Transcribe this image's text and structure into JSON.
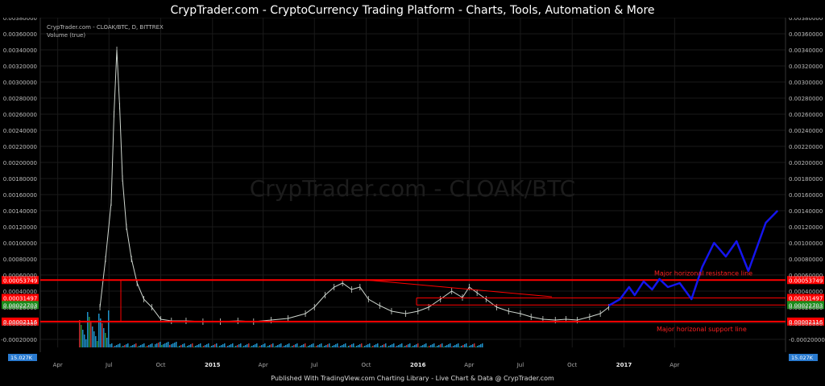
{
  "header": {
    "title": "CrypTrader.com  -  CryptoCurrency Trading Platform  -  Charts, Tools, Automation & More"
  },
  "legend": {
    "symbol": "CrypTrader.com - CLOAK/BTC, D, BITTREX",
    "volume": "Volume (true)"
  },
  "watermark": "CrypTrader.com - CLOAK/BTC",
  "footer": {
    "text": "Published With TradingView.com Charting Library - Live Chart & Data @ CrypTrader.com"
  },
  "colors": {
    "background": "#000000",
    "grid": "#1a1a1a",
    "price": "#cfd6cf",
    "support_resistance": "#ff0000",
    "projection": "#1515ee",
    "volume": "#1e90c8"
  },
  "chart_data": {
    "type": "line",
    "title": "CrypTrader.com - CLOAK/BTC, D, BITTREX",
    "yscale": "linear",
    "ylim": [
      -0.0003,
      0.0038
    ],
    "y_ticks": [
      "0.00380000",
      "0.00360000",
      "0.00340000",
      "0.00320000",
      "0.00300000",
      "0.00280000",
      "0.00260000",
      "0.00240000",
      "0.00220000",
      "0.00200000",
      "0.00180000",
      "0.00160000",
      "0.00140000",
      "0.00120000",
      "0.00100000",
      "0.00080000",
      "0.00060000",
      "0.00040000",
      "0.00020000",
      "0.00000000",
      "-0.00020000"
    ],
    "x_ticks": [
      "Apr",
      "Jul",
      "Oct",
      "2015",
      "Apr",
      "Jul",
      "Oct",
      "2016",
      "Apr",
      "Jul",
      "Oct",
      "2017",
      "Apr"
    ],
    "x_tick_dates": [
      "2014-04",
      "2014-07",
      "2014-10",
      "2015-01",
      "2015-04",
      "2015-07",
      "2015-10",
      "2016-01",
      "2016-04",
      "2016-07",
      "2016-10",
      "2017-01",
      "2017-04"
    ],
    "price_series": {
      "name": "CLOAK/BTC",
      "x": [
        "2014-06-15",
        "2014-06-25",
        "2014-07-05",
        "2014-07-10",
        "2014-07-15",
        "2014-07-20",
        "2014-07-25",
        "2014-08-01",
        "2014-08-10",
        "2014-08-20",
        "2014-09-01",
        "2014-09-15",
        "2014-10-01",
        "2014-10-20",
        "2014-11-15",
        "2014-12-15",
        "2015-01-15",
        "2015-02-15",
        "2015-03-15",
        "2015-04-15",
        "2015-05-15",
        "2015-06-15",
        "2015-07-01",
        "2015-07-20",
        "2015-08-05",
        "2015-08-20",
        "2015-09-05",
        "2015-09-20",
        "2015-10-05",
        "2015-10-25",
        "2015-11-15",
        "2015-12-10",
        "2016-01-01",
        "2016-01-20",
        "2016-02-10",
        "2016-03-01",
        "2016-03-20",
        "2016-04-01",
        "2016-04-15",
        "2016-05-01",
        "2016-05-20",
        "2016-06-10",
        "2016-07-01",
        "2016-07-20",
        "2016-08-10",
        "2016-09-01",
        "2016-09-20",
        "2016-10-10",
        "2016-11-01",
        "2016-11-20",
        "2016-12-05"
      ],
      "y": [
        0.0002,
        0.0008,
        0.0015,
        0.0026,
        0.0034,
        0.0027,
        0.0018,
        0.0012,
        0.0008,
        0.0005,
        0.0003,
        0.0002,
        5e-05,
        3e-05,
        3e-05,
        2e-05,
        2e-05,
        3e-05,
        2e-05,
        4e-05,
        6e-05,
        0.00012,
        0.0002,
        0.00035,
        0.00045,
        0.0005,
        0.00042,
        0.00045,
        0.0003,
        0.00022,
        0.00015,
        0.00012,
        0.00015,
        0.0002,
        0.0003,
        0.0004,
        0.00032,
        0.00045,
        0.00038,
        0.0003,
        0.0002,
        0.00015,
        0.00012,
        8e-05,
        5e-05,
        4e-05,
        5e-05,
        4e-05,
        8e-05,
        0.00012,
        0.0002
      ]
    },
    "projection": {
      "name": "",
      "x": [
        "2016-12-05",
        "2016-12-25",
        "2017-01-10",
        "2017-01-20",
        "2017-02-05",
        "2017-02-20",
        "2017-03-05",
        "2017-03-20",
        "2017-04-10",
        "2017-05-01",
        "2017-05-20",
        "2017-06-10",
        "2017-07-01",
        "2017-07-20",
        "2017-08-10",
        "2017-09-10",
        "2017-10-01"
      ],
      "y": [
        0.00022,
        0.0003,
        0.00045,
        0.00035,
        0.00052,
        0.00042,
        0.00055,
        0.00045,
        0.0005,
        0.0003,
        0.0007,
        0.001,
        0.00083,
        0.00102,
        0.00065,
        0.00125,
        0.0014
      ]
    },
    "annotations": [
      {
        "text": "Major horizonal resistance line",
        "y": 0.00053749
      },
      {
        "text": "Major horizonal support line",
        "y": 2.116e-05
      }
    ],
    "price_levels": [
      {
        "label": "0.00053749",
        "value": 0.00053749,
        "color": "#ff0000"
      },
      {
        "label": "0.00031497",
        "value": 0.00031497,
        "color": "#ff0000"
      },
      {
        "label": "0.00022703",
        "value": 0.00022703,
        "color": "#1a8a1a"
      },
      {
        "label": "0.00002116",
        "value": 2.116e-05,
        "color": "#ff0000"
      }
    ],
    "volume_label": "15.027K",
    "grid": true
  }
}
